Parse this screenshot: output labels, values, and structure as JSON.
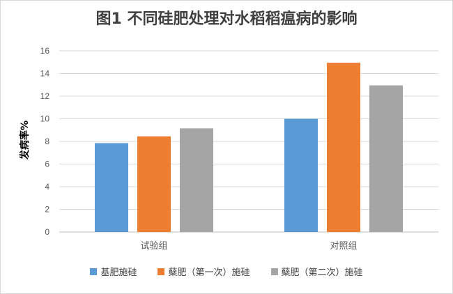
{
  "chart_data": {
    "type": "bar",
    "title": "图1 不同硅肥处理对水稻稻瘟病的影响",
    "xlabel": "",
    "ylabel": "发病率%",
    "ylim": [
      0,
      16
    ],
    "yticks": [
      "0",
      "2",
      "4",
      "6",
      "8",
      "10",
      "12",
      "14",
      "16"
    ],
    "categories": [
      "试验组",
      "对照组"
    ],
    "grid": "horizontal",
    "legend_position": "bottom",
    "series": [
      {
        "name": "基肥施硅",
        "color": "#5b9bd5",
        "values": [
          7.85,
          10.0
        ]
      },
      {
        "name": "蘖肥（第一次）施硅",
        "color": "#ed7d31",
        "values": [
          8.45,
          14.95
        ]
      },
      {
        "name": "蘖肥（第二次）施硅",
        "color": "#a5a5a5",
        "values": [
          9.15,
          12.95
        ]
      }
    ]
  }
}
